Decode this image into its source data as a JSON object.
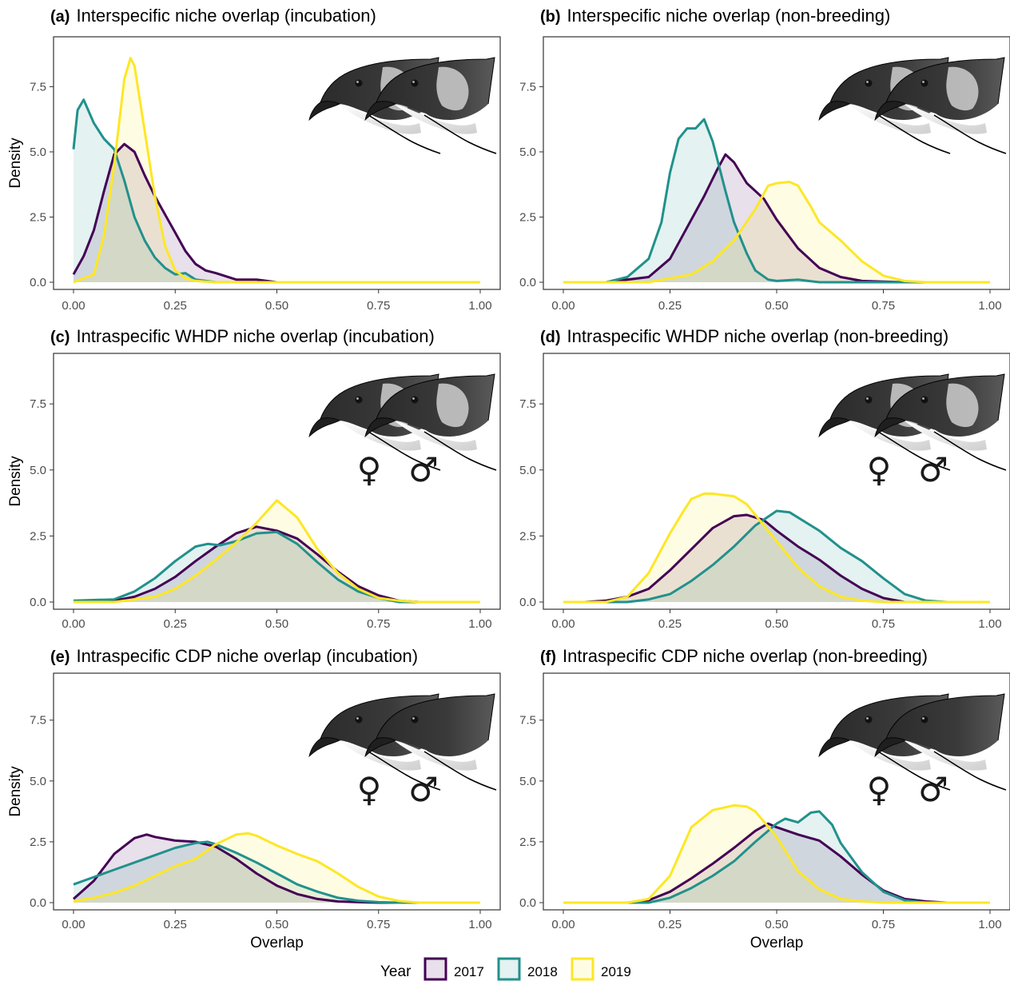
{
  "colors": {
    "2017": "#440154",
    "2018": "#21918c",
    "2019": "#fde725"
  },
  "legend": {
    "title": "Year",
    "items": [
      {
        "label": "2017",
        "color": "#440154"
      },
      {
        "label": "2018",
        "color": "#21918c"
      },
      {
        "label": "2019",
        "color": "#fde725"
      }
    ]
  },
  "chart_data": [
    {
      "type": "area",
      "tag": "(a)",
      "title": "Interspecific niche overlap (incubation)",
      "xlabel": "",
      "ylabel": "Density",
      "xlim": [
        0,
        1
      ],
      "ylim": [
        0,
        9.2
      ],
      "xticks": [
        "0.00",
        "0.25",
        "0.50",
        "0.75",
        "1.00"
      ],
      "yticks": [
        "0.0",
        "2.5",
        "5.0",
        "7.5"
      ],
      "sex_symbols": false,
      "series": [
        {
          "name": "2017",
          "x": [
            0,
            0.025,
            0.05,
            0.075,
            0.1,
            0.125,
            0.15,
            0.175,
            0.2,
            0.225,
            0.25,
            0.275,
            0.3,
            0.325,
            0.35,
            0.4,
            0.45,
            0.5
          ],
          "y": [
            0.3,
            1.0,
            2.0,
            3.5,
            4.9,
            5.3,
            5.0,
            4.1,
            3.3,
            2.6,
            1.9,
            1.2,
            0.7,
            0.45,
            0.35,
            0.1,
            0.1,
            0
          ]
        },
        {
          "name": "2018",
          "x": [
            0,
            0.01,
            0.025,
            0.05,
            0.075,
            0.1,
            0.125,
            0.15,
            0.175,
            0.2,
            0.225,
            0.25,
            0.275,
            0.3,
            0.35
          ],
          "y": [
            5.1,
            6.6,
            7.0,
            6.1,
            5.5,
            5.1,
            3.9,
            2.5,
            1.6,
            0.95,
            0.55,
            0.3,
            0.35,
            0.1,
            0
          ]
        },
        {
          "name": "2019",
          "x": [
            0,
            0.05,
            0.075,
            0.1,
            0.125,
            0.14,
            0.15,
            0.175,
            0.2,
            0.225,
            0.25,
            0.275,
            0.3,
            0.35
          ],
          "y": [
            0,
            0.3,
            1.8,
            4.5,
            7.8,
            8.6,
            8.3,
            5.8,
            3.3,
            1.4,
            0.45,
            0.15,
            0.05,
            0
          ]
        }
      ]
    },
    {
      "type": "area",
      "tag": "(b)",
      "title": "Interspecific niche overlap (non-breeding)",
      "xlabel": "",
      "ylabel": "",
      "xlim": [
        0,
        1
      ],
      "ylim": [
        0,
        9.2
      ],
      "xticks": [
        "0.00",
        "0.25",
        "0.50",
        "0.75",
        "1.00"
      ],
      "yticks": [
        "0.0",
        "2.5",
        "5.0",
        "7.5"
      ],
      "sex_symbols": false,
      "series": [
        {
          "name": "2017",
          "x": [
            0.1,
            0.2,
            0.25,
            0.3,
            0.33,
            0.36,
            0.38,
            0.4,
            0.43,
            0.47,
            0.5,
            0.55,
            0.6,
            0.65,
            0.7,
            0.75,
            0.8
          ],
          "y": [
            0,
            0.2,
            0.9,
            2.4,
            3.3,
            4.3,
            4.9,
            4.6,
            3.8,
            3.2,
            2.4,
            1.3,
            0.55,
            0.2,
            0.05,
            0.02,
            0
          ]
        },
        {
          "name": "2018",
          "x": [
            0.1,
            0.15,
            0.2,
            0.23,
            0.25,
            0.27,
            0.29,
            0.31,
            0.33,
            0.35,
            0.38,
            0.4,
            0.43,
            0.45,
            0.48,
            0.5,
            0.55,
            0.6
          ],
          "y": [
            0,
            0.2,
            0.9,
            2.3,
            4.2,
            5.5,
            5.9,
            5.9,
            6.25,
            5.4,
            3.5,
            2.3,
            1.1,
            0.45,
            0.1,
            0.05,
            0.1,
            0
          ]
        },
        {
          "name": "2019",
          "x": [
            0.2,
            0.3,
            0.35,
            0.4,
            0.45,
            0.48,
            0.5,
            0.53,
            0.55,
            0.58,
            0.6,
            0.65,
            0.7,
            0.75,
            0.8,
            0.85
          ],
          "y": [
            0,
            0.3,
            0.8,
            1.6,
            2.8,
            3.7,
            3.8,
            3.85,
            3.7,
            2.9,
            2.3,
            1.6,
            0.8,
            0.25,
            0.05,
            0
          ]
        }
      ]
    },
    {
      "type": "area",
      "tag": "(c)",
      "title": "Intraspecific WHDP niche overlap (incubation)",
      "xlabel": "",
      "ylabel": "Density",
      "xlim": [
        0,
        1
      ],
      "ylim": [
        0,
        9.2
      ],
      "xticks": [
        "0.00",
        "0.25",
        "0.50",
        "0.75",
        "1.00"
      ],
      "yticks": [
        "0.0",
        "2.5",
        "5.0",
        "7.5"
      ],
      "sex_symbols": true,
      "series": [
        {
          "name": "2017",
          "x": [
            0,
            0.1,
            0.15,
            0.2,
            0.25,
            0.3,
            0.35,
            0.4,
            0.45,
            0.5,
            0.55,
            0.6,
            0.65,
            0.7,
            0.75,
            0.8,
            0.85
          ],
          "y": [
            0,
            0.05,
            0.2,
            0.5,
            0.95,
            1.55,
            2.1,
            2.6,
            2.85,
            2.7,
            2.4,
            1.8,
            1.15,
            0.6,
            0.25,
            0.05,
            0
          ]
        },
        {
          "name": "2018",
          "x": [
            0,
            0.1,
            0.15,
            0.2,
            0.25,
            0.3,
            0.33,
            0.36,
            0.4,
            0.45,
            0.5,
            0.55,
            0.6,
            0.65,
            0.7,
            0.75,
            0.8
          ],
          "y": [
            0.05,
            0.1,
            0.4,
            0.9,
            1.55,
            2.1,
            2.2,
            2.15,
            2.3,
            2.6,
            2.65,
            2.2,
            1.5,
            0.85,
            0.4,
            0.15,
            0
          ]
        },
        {
          "name": "2019",
          "x": [
            0.1,
            0.2,
            0.25,
            0.3,
            0.35,
            0.4,
            0.45,
            0.5,
            0.55,
            0.6,
            0.65,
            0.7,
            0.75,
            0.8,
            0.85
          ],
          "y": [
            0,
            0.2,
            0.5,
            1.0,
            1.6,
            2.25,
            3.0,
            3.85,
            3.2,
            2.0,
            1.1,
            0.5,
            0.15,
            0.05,
            0
          ]
        }
      ]
    },
    {
      "type": "area",
      "tag": "(d)",
      "title": "Intraspecific WHDP niche overlap (non-breeding)",
      "xlabel": "",
      "ylabel": "",
      "xlim": [
        0,
        1
      ],
      "ylim": [
        0,
        9.2
      ],
      "xticks": [
        "0.00",
        "0.25",
        "0.50",
        "0.75",
        "1.00"
      ],
      "yticks": [
        "0.0",
        "2.5",
        "5.0",
        "7.5"
      ],
      "sex_symbols": true,
      "series": [
        {
          "name": "2017",
          "x": [
            0.05,
            0.1,
            0.15,
            0.2,
            0.25,
            0.3,
            0.35,
            0.4,
            0.43,
            0.47,
            0.5,
            0.55,
            0.6,
            0.65,
            0.7,
            0.75,
            0.8
          ],
          "y": [
            0,
            0.05,
            0.2,
            0.5,
            1.2,
            2.0,
            2.8,
            3.25,
            3.3,
            3.1,
            2.7,
            2.1,
            1.6,
            1.0,
            0.5,
            0.15,
            0
          ]
        },
        {
          "name": "2018",
          "x": [
            0.15,
            0.2,
            0.25,
            0.3,
            0.35,
            0.4,
            0.45,
            0.5,
            0.53,
            0.55,
            0.6,
            0.65,
            0.7,
            0.75,
            0.8,
            0.85,
            0.9
          ],
          "y": [
            0,
            0.1,
            0.3,
            0.8,
            1.4,
            2.1,
            2.9,
            3.45,
            3.4,
            3.2,
            2.7,
            2.05,
            1.55,
            0.9,
            0.3,
            0.05,
            0
          ]
        },
        {
          "name": "2019",
          "x": [
            0.1,
            0.15,
            0.2,
            0.25,
            0.28,
            0.3,
            0.33,
            0.35,
            0.4,
            0.43,
            0.45,
            0.5,
            0.55,
            0.6,
            0.65,
            0.7,
            0.75
          ],
          "y": [
            0,
            0.2,
            1.1,
            2.6,
            3.4,
            3.9,
            4.1,
            4.1,
            4.0,
            3.7,
            3.3,
            2.3,
            1.3,
            0.6,
            0.2,
            0.05,
            0
          ]
        }
      ]
    },
    {
      "type": "area",
      "tag": "(e)",
      "title": "Intraspecific CDP niche overlap (incubation)",
      "xlabel": "Overlap",
      "ylabel": "Density",
      "xlim": [
        0,
        1
      ],
      "ylim": [
        0,
        9.2
      ],
      "xticks": [
        "0.00",
        "0.25",
        "0.50",
        "0.75",
        "1.00"
      ],
      "yticks": [
        "0.0",
        "2.5",
        "5.0",
        "7.5"
      ],
      "sex_symbols": true,
      "series": [
        {
          "name": "2017",
          "x": [
            0,
            0.05,
            0.1,
            0.15,
            0.18,
            0.2,
            0.25,
            0.3,
            0.35,
            0.4,
            0.45,
            0.5,
            0.55,
            0.6,
            0.65,
            0.7,
            0.75
          ],
          "y": [
            0.15,
            0.9,
            2.0,
            2.65,
            2.8,
            2.7,
            2.55,
            2.5,
            2.3,
            1.8,
            1.2,
            0.7,
            0.35,
            0.15,
            0.05,
            0.02,
            0
          ]
        },
        {
          "name": "2018",
          "x": [
            0,
            0.05,
            0.1,
            0.15,
            0.2,
            0.25,
            0.3,
            0.33,
            0.35,
            0.4,
            0.45,
            0.5,
            0.55,
            0.6,
            0.65,
            0.7,
            0.75,
            0.8
          ],
          "y": [
            0.75,
            1.05,
            1.35,
            1.65,
            1.95,
            2.25,
            2.45,
            2.5,
            2.4,
            2.05,
            1.65,
            1.2,
            0.75,
            0.45,
            0.2,
            0.08,
            0.02,
            0
          ]
        },
        {
          "name": "2019",
          "x": [
            0,
            0.05,
            0.1,
            0.15,
            0.2,
            0.25,
            0.3,
            0.35,
            0.4,
            0.43,
            0.45,
            0.5,
            0.55,
            0.6,
            0.65,
            0.7,
            0.75,
            0.8,
            0.85
          ],
          "y": [
            0.05,
            0.2,
            0.4,
            0.7,
            1.1,
            1.5,
            1.8,
            2.4,
            2.8,
            2.85,
            2.75,
            2.35,
            2.0,
            1.7,
            1.2,
            0.65,
            0.25,
            0.07,
            0
          ]
        }
      ]
    },
    {
      "type": "area",
      "tag": "(f)",
      "title": "Intraspecific CDP niche overlap (non-breeding)",
      "xlabel": "Overlap",
      "ylabel": "",
      "xlim": [
        0,
        1
      ],
      "ylim": [
        0,
        9.2
      ],
      "xticks": [
        "0.00",
        "0.25",
        "0.50",
        "0.75",
        "1.00"
      ],
      "yticks": [
        "0.0",
        "2.5",
        "5.0",
        "7.5"
      ],
      "sex_symbols": true,
      "series": [
        {
          "name": "2017",
          "x": [
            0.15,
            0.2,
            0.25,
            0.3,
            0.35,
            0.4,
            0.45,
            0.48,
            0.5,
            0.55,
            0.6,
            0.65,
            0.7,
            0.75,
            0.8,
            0.85,
            0.9
          ],
          "y": [
            0,
            0.1,
            0.45,
            1.0,
            1.6,
            2.25,
            2.95,
            3.25,
            3.1,
            2.8,
            2.55,
            1.9,
            1.15,
            0.5,
            0.15,
            0.05,
            0
          ]
        },
        {
          "name": "2018",
          "x": [
            0.2,
            0.25,
            0.3,
            0.35,
            0.4,
            0.45,
            0.5,
            0.52,
            0.55,
            0.58,
            0.6,
            0.63,
            0.65,
            0.7,
            0.75,
            0.8,
            0.85
          ],
          "y": [
            0,
            0.2,
            0.6,
            1.1,
            1.7,
            2.5,
            3.25,
            3.45,
            3.3,
            3.7,
            3.75,
            3.2,
            2.45,
            1.25,
            0.45,
            0.1,
            0
          ]
        },
        {
          "name": "2019",
          "x": [
            0.15,
            0.2,
            0.25,
            0.3,
            0.35,
            0.4,
            0.43,
            0.45,
            0.5,
            0.55,
            0.6,
            0.65,
            0.7,
            0.75
          ],
          "y": [
            0,
            0.15,
            1.1,
            3.1,
            3.8,
            4.0,
            3.95,
            3.75,
            2.7,
            1.3,
            0.55,
            0.15,
            0.05,
            0
          ]
        }
      ]
    }
  ]
}
